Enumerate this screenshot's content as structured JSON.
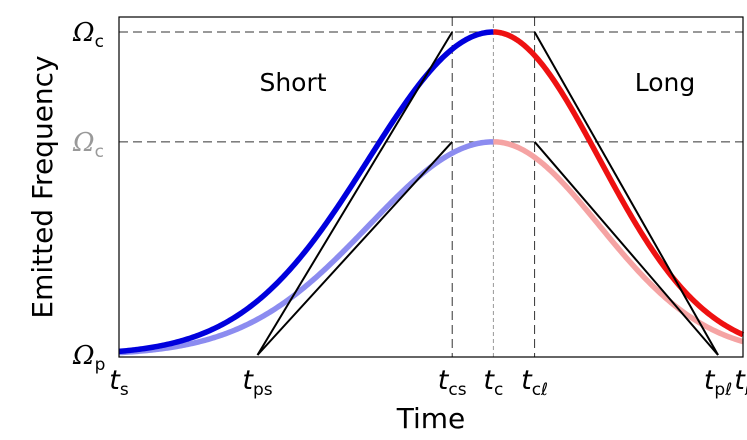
{
  "chart_data": {
    "type": "line",
    "xlabel": "Time",
    "ylabel": "Emitted Frequency",
    "region_labels": {
      "left": "Short",
      "right": "Long"
    },
    "y_markers": [
      {
        "symbol": "Ω",
        "sub": "c",
        "level": 1.0,
        "color": "#000000"
      },
      {
        "symbol": "Ω",
        "sub": "c",
        "level": 0.66,
        "color": "#999999"
      },
      {
        "symbol": "Ω",
        "sub": "p",
        "level": 0.0,
        "color": "#000000"
      }
    ],
    "x_markers": [
      {
        "sym": "t",
        "sub": "s",
        "t": 0.0
      },
      {
        "sym": "t",
        "sub": "ps",
        "t": 0.222
      },
      {
        "sym": "t",
        "sub": "cs",
        "t": 0.534
      },
      {
        "sym": "t",
        "sub": "c",
        "t": 0.6
      },
      {
        "sym": "t",
        "sub": "cℓ",
        "t": 0.666
      },
      {
        "sym": "t",
        "sub": "pℓ",
        "t": 0.96
      },
      {
        "sym": "t",
        "sub": "ℓ",
        "t": 1.0
      }
    ],
    "series": [
      {
        "peak": 1.0,
        "width_left": 0.2,
        "width_right": 0.17,
        "rise_color": "#0000dd",
        "fall_color": "#ee1111"
      },
      {
        "peak": 0.66,
        "width_left": 0.2,
        "width_right": 0.17,
        "rise_color": "#8c8cf0",
        "fall_color": "#f5a3a3"
      }
    ],
    "tangents": [
      {
        "t1": 0.222,
        "y1": 0.0,
        "t2": 0.534,
        "y2": 1.0
      },
      {
        "t1": 0.666,
        "y1": 1.0,
        "t2": 0.96,
        "y2": 0.0
      },
      {
        "t1": 0.222,
        "y1": 0.0,
        "t2": 0.534,
        "y2": 0.66
      },
      {
        "t1": 0.666,
        "y1": 0.66,
        "t2": 0.96,
        "y2": 0.0
      }
    ],
    "t_peak": 0.6,
    "xlim": [
      0,
      1
    ],
    "ylim": [
      0,
      1
    ],
    "grid": false,
    "legend": "none"
  }
}
